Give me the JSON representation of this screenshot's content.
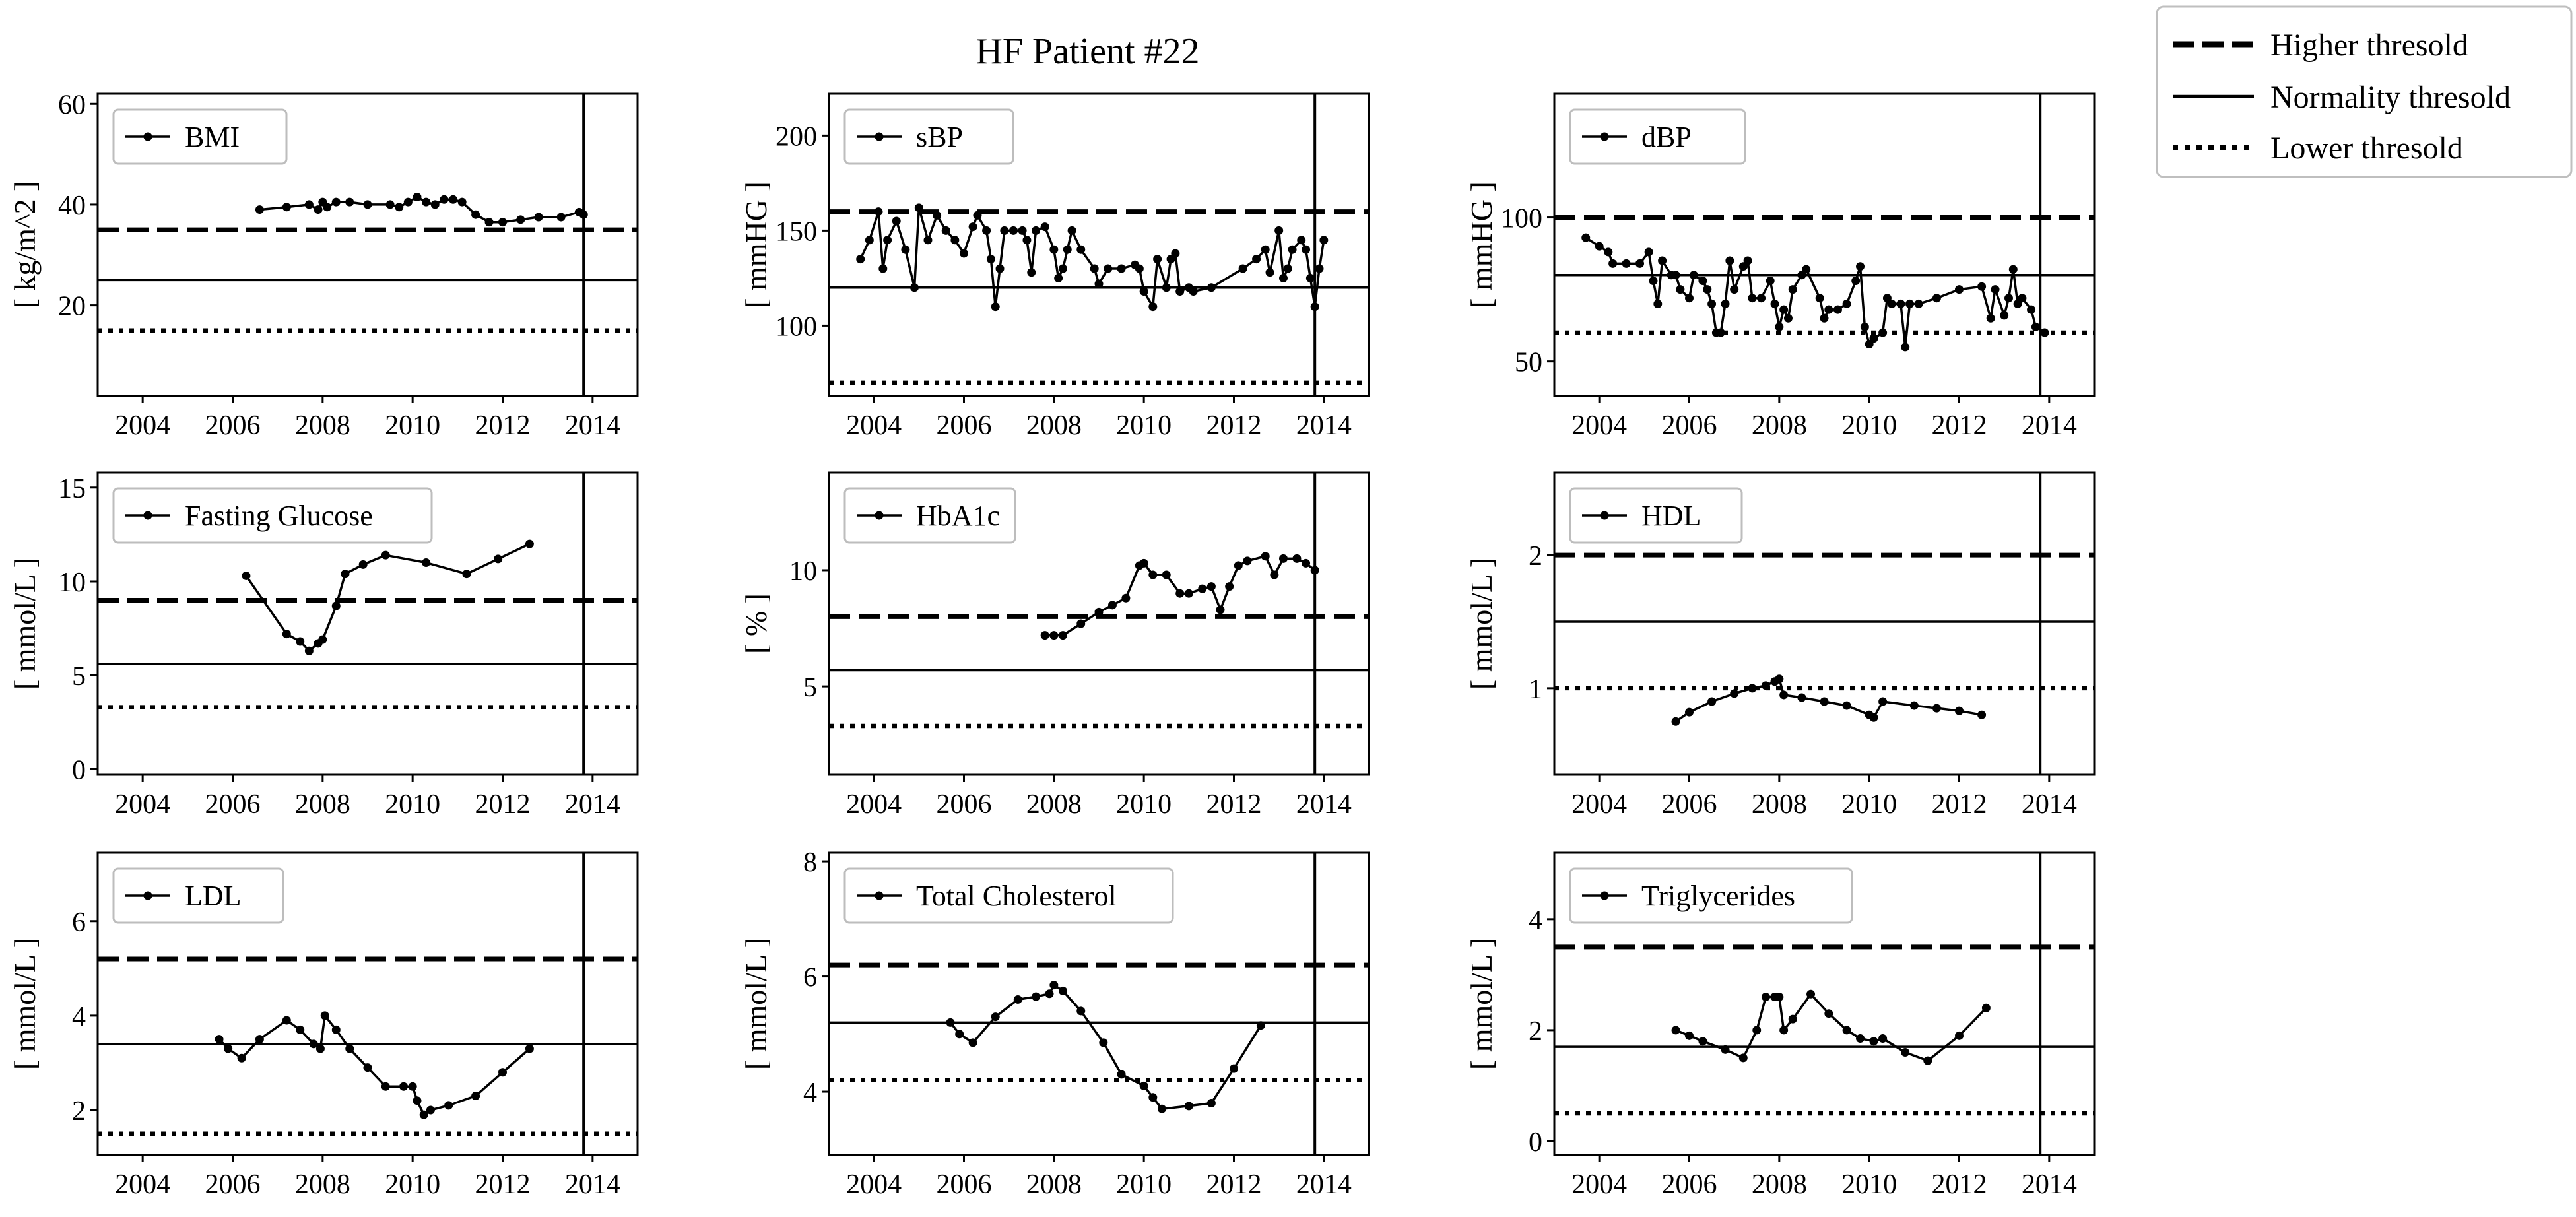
{
  "figure": {
    "title": "HF Patient #22",
    "legend": {
      "placement": "top-right",
      "entries": [
        {
          "label": "Higher thresold",
          "style": "dashed"
        },
        {
          "label": "Normality thresold",
          "style": "solid"
        },
        {
          "label": "Lower thresold",
          "style": "dotted"
        }
      ]
    }
  },
  "chart_data": [
    {
      "type": "line",
      "series_name": "BMI",
      "ylabel": "[ kg/m^2 ]",
      "xlim": [
        2003.0,
        2015.0
      ],
      "xticks": [
        2004,
        2006,
        2008,
        2010,
        2012,
        2014
      ],
      "ylim": [
        2.0,
        62.0
      ],
      "yticks": [
        20,
        40,
        60
      ],
      "thresholds": {
        "higher": 35,
        "normal": 25,
        "lower": 15
      },
      "vline": 2013.8,
      "points": [
        [
          2006.6,
          39.0
        ],
        [
          2007.2,
          39.5
        ],
        [
          2007.7,
          40.0
        ],
        [
          2007.9,
          39.0
        ],
        [
          2008.0,
          40.5
        ],
        [
          2008.1,
          39.5
        ],
        [
          2008.3,
          40.5
        ],
        [
          2008.6,
          40.5
        ],
        [
          2009.0,
          40.0
        ],
        [
          2009.5,
          40.0
        ],
        [
          2009.7,
          39.5
        ],
        [
          2009.9,
          40.5
        ],
        [
          2010.1,
          41.5
        ],
        [
          2010.3,
          40.5
        ],
        [
          2010.5,
          40.0
        ],
        [
          2010.7,
          41.0
        ],
        [
          2010.9,
          41.0
        ],
        [
          2011.1,
          40.5
        ],
        [
          2011.4,
          38.0
        ],
        [
          2011.7,
          36.5
        ],
        [
          2012.0,
          36.5
        ],
        [
          2012.4,
          37.0
        ],
        [
          2012.8,
          37.5
        ],
        [
          2013.3,
          37.5
        ],
        [
          2013.7,
          38.5
        ],
        [
          2013.8,
          38.0
        ]
      ]
    },
    {
      "type": "line",
      "series_name": "sBP",
      "ylabel": "[ mmHG ]",
      "xlim": [
        2003.0,
        2015.0
      ],
      "xticks": [
        2004,
        2006,
        2008,
        2010,
        2012,
        2014
      ],
      "ylim": [
        63.0,
        222.0
      ],
      "yticks": [
        100,
        150,
        200
      ],
      "thresholds": {
        "higher": 160,
        "normal": 120,
        "lower": 70
      },
      "vline": 2013.8,
      "points": [
        [
          2003.7,
          135
        ],
        [
          2003.9,
          145
        ],
        [
          2004.1,
          160
        ],
        [
          2004.2,
          130
        ],
        [
          2004.3,
          145
        ],
        [
          2004.5,
          155
        ],
        [
          2004.7,
          140
        ],
        [
          2004.9,
          120
        ],
        [
          2005.0,
          162
        ],
        [
          2005.2,
          145
        ],
        [
          2005.4,
          158
        ],
        [
          2005.6,
          150
        ],
        [
          2005.8,
          145
        ],
        [
          2006.0,
          138
        ],
        [
          2006.2,
          152
        ],
        [
          2006.3,
          158
        ],
        [
          2006.5,
          150
        ],
        [
          2006.6,
          135
        ],
        [
          2006.7,
          110
        ],
        [
          2006.8,
          130
        ],
        [
          2006.9,
          150
        ],
        [
          2007.1,
          150
        ],
        [
          2007.3,
          150
        ],
        [
          2007.4,
          145
        ],
        [
          2007.5,
          128
        ],
        [
          2007.6,
          150
        ],
        [
          2007.8,
          152
        ],
        [
          2008.0,
          140
        ],
        [
          2008.1,
          125
        ],
        [
          2008.2,
          130
        ],
        [
          2008.3,
          140
        ],
        [
          2008.4,
          150
        ],
        [
          2008.6,
          140
        ],
        [
          2008.9,
          130
        ],
        [
          2009.0,
          122
        ],
        [
          2009.2,
          130
        ],
        [
          2009.5,
          130
        ],
        [
          2009.8,
          132
        ],
        [
          2009.9,
          130
        ],
        [
          2010.0,
          118
        ],
        [
          2010.2,
          110
        ],
        [
          2010.3,
          135
        ],
        [
          2010.5,
          120
        ],
        [
          2010.6,
          135
        ],
        [
          2010.7,
          138
        ],
        [
          2010.8,
          118
        ],
        [
          2011.0,
          120
        ],
        [
          2011.1,
          118
        ],
        [
          2011.5,
          120
        ],
        [
          2012.2,
          130
        ],
        [
          2012.5,
          135
        ],
        [
          2012.7,
          140
        ],
        [
          2012.8,
          128
        ],
        [
          2013.0,
          150
        ],
        [
          2013.1,
          125
        ],
        [
          2013.2,
          130
        ],
        [
          2013.3,
          140
        ],
        [
          2013.5,
          145
        ],
        [
          2013.6,
          140
        ],
        [
          2013.7,
          125
        ],
        [
          2013.8,
          110
        ],
        [
          2013.9,
          130
        ],
        [
          2014.0,
          145
        ]
      ]
    },
    {
      "type": "line",
      "series_name": "dBP",
      "ylabel": "[ mmHG ]",
      "xlim": [
        2003.0,
        2015.0
      ],
      "xticks": [
        2004,
        2006,
        2008,
        2010,
        2012,
        2014
      ],
      "ylim": [
        38.0,
        143.0
      ],
      "yticks": [
        50,
        100
      ],
      "thresholds": {
        "higher": 100,
        "normal": 80,
        "lower": 60
      },
      "vline": 2013.8,
      "points": [
        [
          2003.7,
          93
        ],
        [
          2004.0,
          90
        ],
        [
          2004.2,
          88
        ],
        [
          2004.3,
          84
        ],
        [
          2004.6,
          84
        ],
        [
          2004.9,
          84
        ],
        [
          2005.1,
          88
        ],
        [
          2005.2,
          78
        ],
        [
          2005.3,
          70
        ],
        [
          2005.4,
          85
        ],
        [
          2005.6,
          80
        ],
        [
          2005.7,
          80
        ],
        [
          2005.8,
          75
        ],
        [
          2006.0,
          72
        ],
        [
          2006.1,
          80
        ],
        [
          2006.3,
          78
        ],
        [
          2006.4,
          75
        ],
        [
          2006.5,
          70
        ],
        [
          2006.6,
          60
        ],
        [
          2006.7,
          60
        ],
        [
          2006.8,
          70
        ],
        [
          2006.9,
          85
        ],
        [
          2007.0,
          75
        ],
        [
          2007.2,
          83
        ],
        [
          2007.3,
          85
        ],
        [
          2007.4,
          72
        ],
        [
          2007.6,
          72
        ],
        [
          2007.8,
          78
        ],
        [
          2007.9,
          70
        ],
        [
          2008.0,
          62
        ],
        [
          2008.1,
          68
        ],
        [
          2008.2,
          65
        ],
        [
          2008.3,
          75
        ],
        [
          2008.5,
          80
        ],
        [
          2008.6,
          82
        ],
        [
          2008.9,
          72
        ],
        [
          2009.0,
          65
        ],
        [
          2009.1,
          68
        ],
        [
          2009.3,
          68
        ],
        [
          2009.5,
          70
        ],
        [
          2009.7,
          78
        ],
        [
          2009.8,
          83
        ],
        [
          2009.9,
          62
        ],
        [
          2010.0,
          56
        ],
        [
          2010.1,
          58
        ],
        [
          2010.3,
          60
        ],
        [
          2010.4,
          72
        ],
        [
          2010.5,
          70
        ],
        [
          2010.7,
          70
        ],
        [
          2010.8,
          55
        ],
        [
          2010.9,
          70
        ],
        [
          2011.1,
          70
        ],
        [
          2011.5,
          72
        ],
        [
          2012.0,
          75
        ],
        [
          2012.5,
          76
        ],
        [
          2012.7,
          65
        ],
        [
          2012.8,
          75
        ],
        [
          2013.0,
          66
        ],
        [
          2013.1,
          72
        ],
        [
          2013.2,
          82
        ],
        [
          2013.3,
          70
        ],
        [
          2013.4,
          72
        ],
        [
          2013.6,
          68
        ],
        [
          2013.7,
          62
        ],
        [
          2013.9,
          60
        ]
      ]
    },
    {
      "type": "line",
      "series_name": "Fasting Glucose",
      "ylabel": "[ mmol/L ]",
      "xlim": [
        2003.0,
        2015.0
      ],
      "xticks": [
        2004,
        2006,
        2008,
        2010,
        2012,
        2014
      ],
      "ylim": [
        -0.3,
        15.8
      ],
      "yticks": [
        0,
        5,
        10,
        15
      ],
      "thresholds": {
        "higher": 9.0,
        "normal": 5.6,
        "lower": 3.3
      },
      "vline": 2013.8,
      "points": [
        [
          2006.3,
          10.3
        ],
        [
          2007.2,
          7.2
        ],
        [
          2007.5,
          6.8
        ],
        [
          2007.7,
          6.3
        ],
        [
          2007.9,
          6.7
        ],
        [
          2008.0,
          6.9
        ],
        [
          2008.3,
          8.7
        ],
        [
          2008.5,
          10.4
        ],
        [
          2008.9,
          10.9
        ],
        [
          2009.4,
          11.4
        ],
        [
          2010.3,
          11.0
        ],
        [
          2011.2,
          10.4
        ],
        [
          2011.9,
          11.2
        ],
        [
          2012.6,
          12.0
        ]
      ]
    },
    {
      "type": "line",
      "series_name": "HbA1c",
      "ylabel": "[ % ]",
      "xlim": [
        2003.0,
        2015.0
      ],
      "xticks": [
        2004,
        2006,
        2008,
        2010,
        2012,
        2014
      ],
      "ylim": [
        1.2,
        14.2
      ],
      "yticks": [
        5,
        10
      ],
      "thresholds": {
        "higher": 8.0,
        "normal": 5.7,
        "lower": 3.3
      },
      "vline": 2013.8,
      "points": [
        [
          2007.8,
          7.2
        ],
        [
          2008.0,
          7.2
        ],
        [
          2008.2,
          7.2
        ],
        [
          2008.6,
          7.7
        ],
        [
          2009.0,
          8.2
        ],
        [
          2009.3,
          8.5
        ],
        [
          2009.6,
          8.8
        ],
        [
          2009.9,
          10.2
        ],
        [
          2010.0,
          10.3
        ],
        [
          2010.2,
          9.8
        ],
        [
          2010.5,
          9.8
        ],
        [
          2010.8,
          9.0
        ],
        [
          2011.0,
          9.0
        ],
        [
          2011.3,
          9.2
        ],
        [
          2011.5,
          9.3
        ],
        [
          2011.7,
          8.3
        ],
        [
          2011.9,
          9.3
        ],
        [
          2012.1,
          10.2
        ],
        [
          2012.3,
          10.4
        ],
        [
          2012.7,
          10.6
        ],
        [
          2012.9,
          9.8
        ],
        [
          2013.1,
          10.5
        ],
        [
          2013.4,
          10.5
        ],
        [
          2013.6,
          10.3
        ],
        [
          2013.8,
          10.0
        ]
      ]
    },
    {
      "type": "line",
      "series_name": "HDL",
      "ylabel": "[ mmol/L ]",
      "xlim": [
        2003.0,
        2015.0
      ],
      "xticks": [
        2004,
        2006,
        2008,
        2010,
        2012,
        2014
      ],
      "ylim": [
        0.35,
        2.62
      ],
      "yticks": [
        1,
        2
      ],
      "thresholds": {
        "higher": 2.0,
        "normal": 1.5,
        "lower": 1.0
      },
      "vline": 2013.8,
      "points": [
        [
          2005.7,
          0.75
        ],
        [
          2006.0,
          0.82
        ],
        [
          2006.5,
          0.9
        ],
        [
          2007.0,
          0.96
        ],
        [
          2007.4,
          1.0
        ],
        [
          2007.7,
          1.02
        ],
        [
          2007.9,
          1.05
        ],
        [
          2008.0,
          1.07
        ],
        [
          2008.1,
          0.95
        ],
        [
          2008.5,
          0.93
        ],
        [
          2009.0,
          0.9
        ],
        [
          2009.5,
          0.87
        ],
        [
          2010.0,
          0.8
        ],
        [
          2010.1,
          0.78
        ],
        [
          2010.3,
          0.9
        ],
        [
          2011.0,
          0.87
        ],
        [
          2011.5,
          0.85
        ],
        [
          2012.0,
          0.83
        ],
        [
          2012.5,
          0.8
        ]
      ]
    },
    {
      "type": "line",
      "series_name": "LDL",
      "ylabel": "[ mmol/L ]",
      "xlim": [
        2003.0,
        2015.0
      ],
      "xticks": [
        2004,
        2006,
        2008,
        2010,
        2012,
        2014
      ],
      "ylim": [
        1.05,
        7.45
      ],
      "yticks": [
        2,
        4,
        6
      ],
      "thresholds": {
        "higher": 5.2,
        "normal": 3.4,
        "lower": 1.5
      },
      "vline": 2013.8,
      "points": [
        [
          2005.7,
          3.5
        ],
        [
          2005.9,
          3.3
        ],
        [
          2006.2,
          3.1
        ],
        [
          2006.6,
          3.5
        ],
        [
          2007.2,
          3.9
        ],
        [
          2007.5,
          3.7
        ],
        [
          2007.8,
          3.4
        ],
        [
          2007.95,
          3.3
        ],
        [
          2008.05,
          4.0
        ],
        [
          2008.3,
          3.7
        ],
        [
          2008.6,
          3.3
        ],
        [
          2009.0,
          2.9
        ],
        [
          2009.4,
          2.5
        ],
        [
          2009.8,
          2.5
        ],
        [
          2010.0,
          2.5
        ],
        [
          2010.1,
          2.2
        ],
        [
          2010.25,
          1.9
        ],
        [
          2010.4,
          2.0
        ],
        [
          2010.8,
          2.1
        ],
        [
          2011.4,
          2.3
        ],
        [
          2012.0,
          2.8
        ],
        [
          2012.6,
          3.3
        ]
      ]
    },
    {
      "type": "line",
      "series_name": "Total Cholesterol",
      "ylabel": "[ mmol/L ]",
      "xlim": [
        2003.0,
        2015.0
      ],
      "xticks": [
        2004,
        2006,
        2008,
        2010,
        2012,
        2014
      ],
      "ylim": [
        2.9,
        8.15
      ],
      "yticks": [
        4,
        6,
        8
      ],
      "thresholds": {
        "higher": 6.2,
        "normal": 5.2,
        "lower": 4.2
      },
      "vline": 2013.8,
      "points": [
        [
          2005.7,
          5.2
        ],
        [
          2005.9,
          5.0
        ],
        [
          2006.2,
          4.85
        ],
        [
          2006.7,
          5.3
        ],
        [
          2007.2,
          5.6
        ],
        [
          2007.6,
          5.65
        ],
        [
          2007.9,
          5.7
        ],
        [
          2008.0,
          5.85
        ],
        [
          2008.2,
          5.75
        ],
        [
          2008.6,
          5.4
        ],
        [
          2009.1,
          4.85
        ],
        [
          2009.5,
          4.3
        ],
        [
          2010.0,
          4.1
        ],
        [
          2010.2,
          3.9
        ],
        [
          2010.4,
          3.7
        ],
        [
          2011.0,
          3.75
        ],
        [
          2011.5,
          3.8
        ],
        [
          2012.0,
          4.4
        ],
        [
          2012.6,
          5.15
        ]
      ]
    },
    {
      "type": "line",
      "series_name": "Triglycerides",
      "ylabel": "[ mmol/L ]",
      "xlim": [
        2003.0,
        2015.0
      ],
      "xticks": [
        2004,
        2006,
        2008,
        2010,
        2012,
        2014
      ],
      "ylim": [
        -0.25,
        5.2
      ],
      "yticks": [
        0,
        2,
        4
      ],
      "thresholds": {
        "higher": 3.5,
        "normal": 1.7,
        "lower": 0.5
      },
      "vline": 2013.8,
      "points": [
        [
          2005.7,
          2.0
        ],
        [
          2006.0,
          1.9
        ],
        [
          2006.3,
          1.8
        ],
        [
          2006.8,
          1.65
        ],
        [
          2007.2,
          1.5
        ],
        [
          2007.5,
          2.0
        ],
        [
          2007.7,
          2.6
        ],
        [
          2007.9,
          2.6
        ],
        [
          2008.0,
          2.6
        ],
        [
          2008.1,
          2.0
        ],
        [
          2008.3,
          2.2
        ],
        [
          2008.7,
          2.65
        ],
        [
          2009.1,
          2.3
        ],
        [
          2009.5,
          2.0
        ],
        [
          2009.8,
          1.85
        ],
        [
          2010.1,
          1.8
        ],
        [
          2010.3,
          1.85
        ],
        [
          2010.8,
          1.6
        ],
        [
          2011.3,
          1.45
        ],
        [
          2012.0,
          1.9
        ],
        [
          2012.6,
          2.4
        ]
      ]
    }
  ]
}
